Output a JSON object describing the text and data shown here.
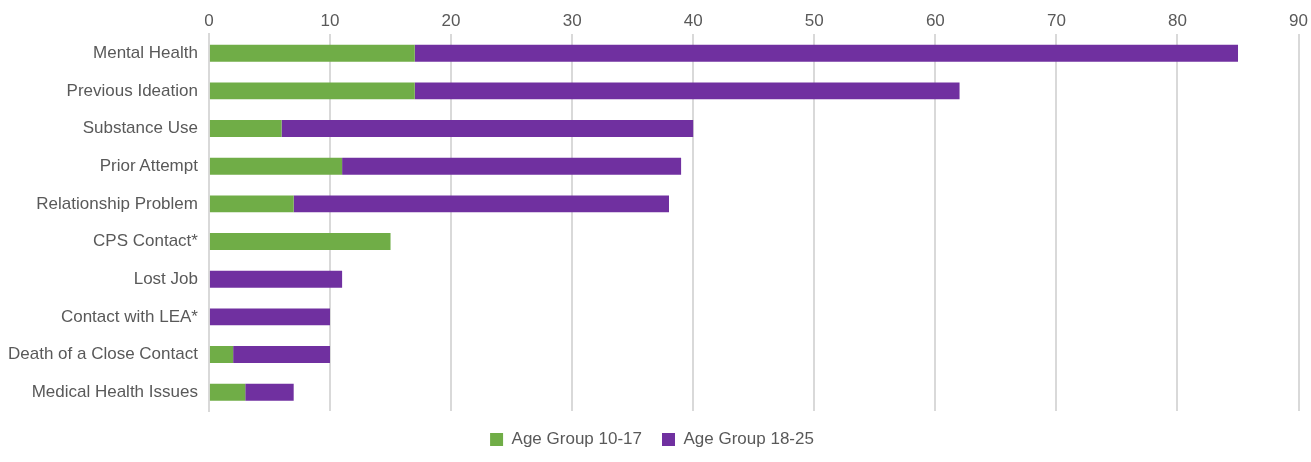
{
  "chart_data": {
    "type": "bar",
    "orientation": "horizontal",
    "stacked": true,
    "categories": [
      "Mental Health",
      "Previous Ideation",
      "Substance Use",
      "Prior Attempt",
      "Relationship Problem",
      "CPS Contact*",
      "Lost Job",
      "Contact with LEA*",
      "Death of a Close Contact",
      "Medical Health Issues"
    ],
    "series": [
      {
        "name": "Age Group 10-17",
        "color": "#70ad47",
        "values": [
          17,
          17,
          6,
          11,
          7,
          15,
          0,
          0,
          2,
          3
        ]
      },
      {
        "name": "Age Group 18-25",
        "color": "#7030a0",
        "values": [
          68,
          45,
          34,
          28,
          31,
          0,
          11,
          10,
          8,
          4
        ]
      }
    ],
    "xlim": [
      0,
      90
    ],
    "xticks": [
      0,
      10,
      20,
      30,
      40,
      50,
      60,
      70,
      80,
      90
    ],
    "grid": "x",
    "legend": "bottom"
  }
}
